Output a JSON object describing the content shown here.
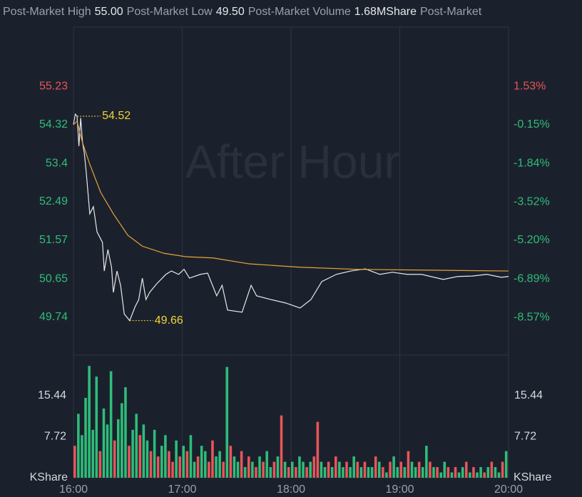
{
  "header": {
    "items": [
      {
        "label": "Post-Market High",
        "value": "55.00"
      },
      {
        "label": "Post-Market Low",
        "value": "49.50"
      },
      {
        "label": "Post-Market Volume",
        "value": "1.68MShare"
      },
      {
        "label": "Post-Market"
      }
    ]
  },
  "chart_data": {
    "type": "line",
    "watermark": "After Hour",
    "xlim": [
      0,
      240
    ],
    "xticks": [
      {
        "value": 0,
        "label": "16:00"
      },
      {
        "value": 60,
        "label": "17:00"
      },
      {
        "value": 120,
        "label": "18:00"
      },
      {
        "value": 180,
        "label": "19:00"
      },
      {
        "value": 240,
        "label": "20:00"
      }
    ],
    "ylim": [
      48.84,
      56.64
    ],
    "yticks": [
      55.23,
      54.32,
      53.4,
      52.49,
      51.57,
      50.65,
      49.74
    ],
    "y2lim": [
      -10.22,
      4.12
    ],
    "y2ticks": [
      {
        "value": 1.53,
        "label": "1.53%"
      },
      {
        "value": -0.15,
        "label": "-0.15%"
      },
      {
        "value": -1.84,
        "label": "-1.84%"
      },
      {
        "value": -3.52,
        "label": "-3.52%"
      },
      {
        "value": -5.2,
        "label": "-5.20%"
      },
      {
        "value": -6.89,
        "label": "-6.89%"
      },
      {
        "value": -8.57,
        "label": "-8.57%"
      }
    ],
    "up_color": "#e8555a",
    "down_color": "#2ebd7a",
    "grid": true,
    "series": [
      {
        "color": "#e8e8ea",
        "x": [
          0,
          1,
          2,
          3,
          4,
          5,
          6,
          7,
          9,
          11,
          13,
          16,
          17,
          19,
          21,
          22,
          24,
          26,
          28,
          31,
          34,
          36,
          38,
          40,
          42,
          46,
          51,
          54,
          58,
          61,
          64,
          70,
          74,
          79,
          82,
          85,
          93,
          98,
          101,
          109,
          117,
          125,
          131,
          137,
          145,
          153,
          161,
          169,
          176,
          184,
          192,
          204,
          212,
          220,
          228,
          236,
          240
        ],
        "values": [
          54.32,
          54.57,
          54.52,
          53.81,
          54.48,
          53.89,
          53.64,
          53.21,
          52.2,
          52.37,
          51.77,
          51.52,
          50.84,
          51.35,
          50.93,
          50.33,
          50.84,
          50.5,
          49.82,
          49.66,
          49.99,
          50.16,
          50.67,
          50.16,
          50.33,
          50.54,
          50.76,
          50.84,
          50.76,
          50.88,
          50.67,
          50.76,
          50.79,
          50.25,
          50.5,
          49.91,
          49.86,
          50.5,
          50.25,
          50.16,
          50.08,
          49.96,
          50.16,
          50.59,
          50.76,
          50.84,
          50.89,
          50.76,
          50.81,
          50.76,
          50.76,
          50.64,
          50.71,
          50.72,
          50.76,
          50.69,
          50.71
        ]
      },
      {
        "color": "#e8a33a",
        "x": [
          0,
          2,
          5,
          9,
          15,
          22,
          30,
          38,
          50,
          62,
          77,
          97,
          125,
          156,
          196,
          240
        ],
        "values": [
          54.32,
          54.4,
          53.89,
          53.38,
          52.71,
          52.2,
          51.69,
          51.43,
          51.26,
          51.18,
          51.15,
          51.01,
          50.93,
          50.88,
          50.86,
          50.84
        ]
      }
    ],
    "annotations": [
      {
        "x": 2,
        "y": 54.52
      },
      {
        "x": 31,
        "y": 49.66
      }
    ],
    "annotation_color": "#f0d43a",
    "volume": {
      "unit": "KShare",
      "ylim": [
        0,
        23.03
      ],
      "yticks": [
        15.44,
        7.72
      ],
      "x": [
        0,
        2,
        4,
        6,
        8,
        10,
        12,
        14,
        16,
        18,
        20,
        22,
        24,
        26,
        28,
        30,
        32,
        34,
        36,
        38,
        40,
        42,
        44,
        46,
        48,
        50,
        52,
        54,
        56,
        58,
        60,
        62,
        64,
        66,
        68,
        70,
        72,
        74,
        76,
        78,
        80,
        82,
        84,
        86,
        88,
        90,
        92,
        94,
        96,
        98,
        100,
        102,
        104,
        106,
        108,
        110,
        112,
        114,
        116,
        118,
        120,
        122,
        124,
        126,
        128,
        130,
        132,
        134,
        136,
        138,
        140,
        142,
        144,
        146,
        148,
        150,
        152,
        154,
        156,
        158,
        160,
        162,
        164,
        166,
        168,
        170,
        172,
        174,
        176,
        178,
        180,
        182,
        184,
        186,
        188,
        190,
        192,
        194,
        196,
        198,
        200,
        202,
        204,
        206,
        208,
        210,
        212,
        214,
        216,
        218,
        220,
        222,
        224,
        226,
        228,
        230,
        232,
        234,
        236,
        238
      ],
      "values": [
        6,
        12,
        8,
        15,
        21,
        9,
        19,
        5,
        13,
        10,
        20,
        7,
        11,
        14,
        17,
        6,
        9,
        12,
        8,
        10,
        7,
        5,
        9,
        4,
        6,
        8,
        5,
        3,
        7,
        4,
        6,
        5,
        8,
        3,
        4,
        6,
        5,
        3,
        7,
        4,
        5,
        3,
        20.8,
        6,
        4,
        3,
        5,
        2,
        4,
        3,
        2,
        4,
        3,
        5,
        2,
        3,
        4,
        11.7,
        3,
        2,
        3,
        2,
        4,
        3,
        2,
        3,
        4,
        10.5,
        3,
        2,
        3,
        2,
        4,
        3,
        2,
        3,
        2,
        4,
        3,
        2,
        3,
        2,
        2,
        4,
        3,
        2,
        1,
        3,
        4,
        2,
        3,
        2,
        5,
        3,
        2,
        3,
        2,
        6,
        3,
        2,
        2,
        1,
        3,
        2,
        1,
        2,
        1,
        2,
        3,
        1,
        2,
        1,
        2,
        1,
        2,
        3,
        2,
        1,
        3,
        5
      ],
      "rising": [
        true,
        false,
        false,
        false,
        false,
        false,
        false,
        true,
        false,
        false,
        false,
        true,
        false,
        false,
        false,
        true,
        false,
        false,
        true,
        false,
        false,
        true,
        false,
        true,
        false,
        false,
        true,
        true,
        false,
        true,
        false,
        true,
        false,
        false,
        true,
        false,
        false,
        true,
        true,
        false,
        false,
        true,
        false,
        true,
        false,
        false,
        true,
        false,
        true,
        false,
        true,
        false,
        true,
        false,
        false,
        true,
        false,
        true,
        false,
        true,
        false,
        true,
        false,
        false,
        true,
        false,
        true,
        true,
        false,
        false,
        true,
        false,
        true,
        false,
        false,
        true,
        false,
        false,
        true,
        false,
        true,
        false,
        false,
        true,
        false,
        true,
        false,
        true,
        false,
        false,
        true,
        false,
        true,
        false,
        false,
        true,
        false,
        false,
        true,
        false,
        true,
        false,
        false,
        true,
        false,
        true,
        false,
        false,
        true,
        false,
        true,
        false,
        false,
        true,
        false,
        true,
        false,
        false,
        true,
        false
      ]
    }
  }
}
